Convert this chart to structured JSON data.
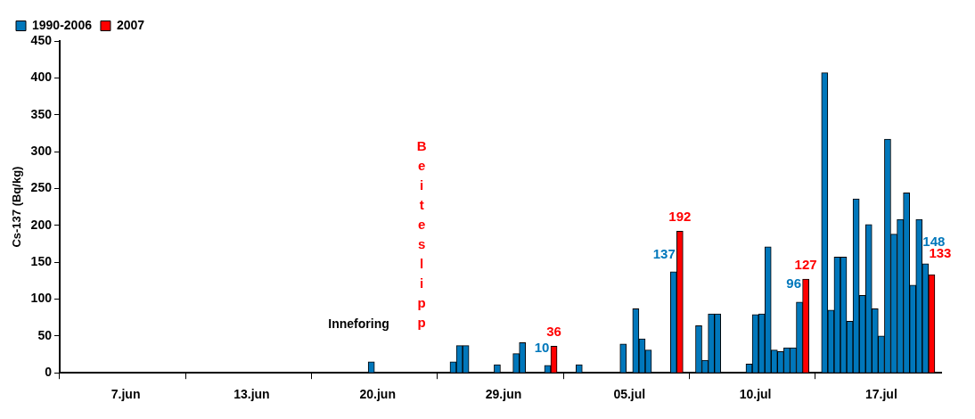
{
  "chart_data": {
    "type": "bar",
    "ylabel": "Cs-137 (Bq/kg)",
    "ylim": [
      0,
      450
    ],
    "yticks": [
      0,
      50,
      100,
      150,
      200,
      250,
      300,
      350,
      400,
      450
    ],
    "grid": false,
    "legend": "top left",
    "categories": [
      null,
      null,
      null,
      null,
      null,
      null,
      null,
      null,
      null,
      null,
      "7.jun",
      null,
      null,
      null,
      null,
      null,
      null,
      null,
      null,
      null,
      null,
      null,
      null,
      null,
      null,
      null,
      null,
      null,
      null,
      null,
      "13.jun",
      null,
      null,
      null,
      null,
      null,
      null,
      null,
      null,
      null,
      null,
      null,
      null,
      null,
      null,
      null,
      null,
      null,
      null,
      null,
      "20.jun",
      null,
      null,
      null,
      null,
      null,
      null,
      null,
      null,
      null,
      null,
      null,
      null,
      null,
      null,
      null,
      null,
      null,
      null,
      null,
      "29.jun",
      null,
      null,
      null,
      null,
      null,
      null,
      null,
      null,
      null,
      null,
      null,
      null,
      null,
      null,
      null,
      null,
      null,
      null,
      null,
      "05.jul",
      null,
      null,
      null,
      null,
      null,
      null,
      null,
      null,
      null,
      null,
      null,
      null,
      null,
      null,
      null,
      null,
      null,
      null,
      null,
      "10.jul",
      null,
      null,
      null,
      null,
      null,
      null,
      null,
      null,
      null,
      null,
      null,
      null,
      null,
      null,
      null,
      null,
      null,
      null,
      null,
      "17.jul",
      null,
      null,
      null,
      null,
      null,
      null,
      null,
      null,
      null
    ],
    "series": [
      {
        "name": "1990-2006",
        "color": "#0077bb",
        "values": [
          null,
          null,
          null,
          null,
          null,
          null,
          null,
          null,
          null,
          null,
          null,
          null,
          null,
          null,
          null,
          null,
          null,
          null,
          null,
          null,
          null,
          null,
          null,
          null,
          null,
          null,
          null,
          null,
          null,
          null,
          null,
          null,
          null,
          null,
          null,
          null,
          null,
          null,
          null,
          null,
          null,
          null,
          null,
          null,
          null,
          null,
          null,
          null,
          null,
          15,
          null,
          null,
          null,
          null,
          null,
          null,
          null,
          null,
          null,
          null,
          null,
          null,
          15,
          37,
          37,
          null,
          null,
          null,
          null,
          11,
          null,
          null,
          26,
          41,
          null,
          null,
          null,
          10,
          null,
          null,
          null,
          null,
          11,
          null,
          null,
          null,
          null,
          null,
          null,
          39,
          null,
          87,
          46,
          31,
          null,
          null,
          null,
          137,
          null,
          null,
          null,
          64,
          17,
          80,
          80,
          null,
          null,
          null,
          null,
          12,
          79,
          80,
          171,
          31,
          29,
          34,
          34,
          96,
          null,
          null,
          null,
          407,
          85,
          157,
          157,
          70,
          236,
          105,
          201,
          87,
          50,
          317,
          188,
          208,
          244,
          119,
          208,
          148,
          null,
          null
        ],
        "value_labels": [
          null,
          null,
          null,
          null,
          null,
          null,
          null,
          null,
          null,
          null,
          null,
          null,
          null,
          null,
          null,
          null,
          null,
          null,
          null,
          null,
          null,
          null,
          null,
          null,
          null,
          null,
          null,
          null,
          null,
          null,
          null,
          null,
          null,
          null,
          null,
          null,
          null,
          null,
          null,
          null,
          null,
          null,
          null,
          null,
          null,
          null,
          null,
          null,
          null,
          null,
          null,
          null,
          null,
          null,
          null,
          null,
          null,
          null,
          null,
          null,
          null,
          null,
          null,
          null,
          null,
          null,
          null,
          null,
          null,
          null,
          null,
          null,
          null,
          null,
          null,
          null,
          null,
          "10",
          null,
          null,
          null,
          null,
          null,
          null,
          null,
          null,
          null,
          null,
          null,
          null,
          null,
          null,
          null,
          null,
          null,
          null,
          null,
          "137",
          null,
          null,
          null,
          null,
          null,
          null,
          null,
          null,
          null,
          null,
          null,
          null,
          null,
          null,
          null,
          null,
          null,
          null,
          null,
          "96",
          null,
          null,
          null,
          null,
          null,
          null,
          null,
          null,
          null,
          null,
          null,
          null,
          null,
          null,
          null,
          null,
          null,
          null,
          null,
          "148",
          null,
          null
        ]
      },
      {
        "name": "2007",
        "color": "#ff0000",
        "values": [
          null,
          null,
          null,
          null,
          null,
          null,
          null,
          null,
          null,
          null,
          null,
          null,
          null,
          null,
          null,
          null,
          null,
          null,
          null,
          null,
          null,
          null,
          null,
          null,
          null,
          null,
          null,
          null,
          null,
          null,
          null,
          null,
          null,
          null,
          null,
          null,
          null,
          null,
          null,
          null,
          null,
          null,
          null,
          null,
          null,
          null,
          null,
          null,
          null,
          null,
          null,
          null,
          null,
          null,
          null,
          null,
          null,
          null,
          null,
          null,
          null,
          null,
          null,
          null,
          null,
          null,
          null,
          null,
          null,
          null,
          null,
          null,
          null,
          null,
          null,
          null,
          null,
          null,
          36,
          null,
          null,
          null,
          null,
          null,
          null,
          null,
          null,
          null,
          null,
          null,
          null,
          null,
          null,
          null,
          null,
          null,
          null,
          null,
          192,
          null,
          null,
          null,
          null,
          null,
          null,
          null,
          null,
          null,
          null,
          null,
          null,
          null,
          null,
          null,
          null,
          null,
          null,
          null,
          127,
          null,
          null,
          null,
          null,
          null,
          null,
          null,
          null,
          null,
          null,
          null,
          null,
          null,
          null,
          null,
          null,
          null,
          null,
          null,
          133,
          null
        ],
        "value_labels": [
          null,
          null,
          null,
          null,
          null,
          null,
          null,
          null,
          null,
          null,
          null,
          null,
          null,
          null,
          null,
          null,
          null,
          null,
          null,
          null,
          null,
          null,
          null,
          null,
          null,
          null,
          null,
          null,
          null,
          null,
          null,
          null,
          null,
          null,
          null,
          null,
          null,
          null,
          null,
          null,
          null,
          null,
          null,
          null,
          null,
          null,
          null,
          null,
          null,
          null,
          null,
          null,
          null,
          null,
          null,
          null,
          null,
          null,
          null,
          null,
          null,
          null,
          null,
          null,
          null,
          null,
          null,
          null,
          null,
          null,
          null,
          null,
          null,
          null,
          null,
          null,
          null,
          null,
          "36",
          null,
          null,
          null,
          null,
          null,
          null,
          null,
          null,
          null,
          null,
          null,
          null,
          null,
          null,
          null,
          null,
          null,
          null,
          null,
          "192",
          null,
          null,
          null,
          null,
          null,
          null,
          null,
          null,
          null,
          null,
          null,
          null,
          null,
          null,
          null,
          null,
          null,
          null,
          null,
          "127",
          null,
          null,
          null,
          null,
          null,
          null,
          null,
          null,
          null,
          null,
          null,
          null,
          null,
          null,
          null,
          null,
          null,
          null,
          null,
          "133",
          null
        ]
      }
    ],
    "annotations": [
      "Inneforing",
      "Beiteslipp"
    ]
  }
}
